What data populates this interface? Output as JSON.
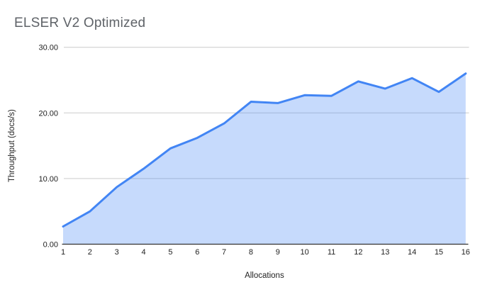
{
  "header": {
    "title": "ELSER V2 Optimized"
  },
  "chart_data": {
    "type": "area",
    "title": "ELSER V2 Optimized",
    "xlabel": "Allocations",
    "ylabel": "Throughput (docs/s)",
    "x": [
      1,
      2,
      3,
      4,
      5,
      6,
      7,
      8,
      9,
      10,
      11,
      12,
      13,
      14,
      15,
      16
    ],
    "series": [
      {
        "name": "Throughput (docs/s)",
        "values": [
          2.7,
          5.0,
          8.7,
          11.5,
          14.6,
          16.2,
          18.4,
          21.7,
          21.5,
          22.7,
          22.6,
          24.8,
          23.7,
          25.3,
          23.2,
          26.0
        ]
      }
    ],
    "ylim": [
      0,
      30
    ],
    "yticks": [
      0,
      10,
      20,
      30
    ],
    "ytick_labels": [
      "0.00",
      "10.00",
      "20.00",
      "30.00"
    ],
    "xtick_labels": [
      "1",
      "2",
      "3",
      "4",
      "5",
      "6",
      "7",
      "8",
      "9",
      "10",
      "11",
      "12",
      "13",
      "14",
      "15",
      "16"
    ],
    "grid": true,
    "legend": "none",
    "colors": {
      "line": "#4285f4",
      "fill": "rgba(66,133,244,0.3)",
      "gridline": "#cccccc",
      "axis_line": "#333333",
      "tick_text": "#222222",
      "title_text": "#5f6368"
    }
  }
}
